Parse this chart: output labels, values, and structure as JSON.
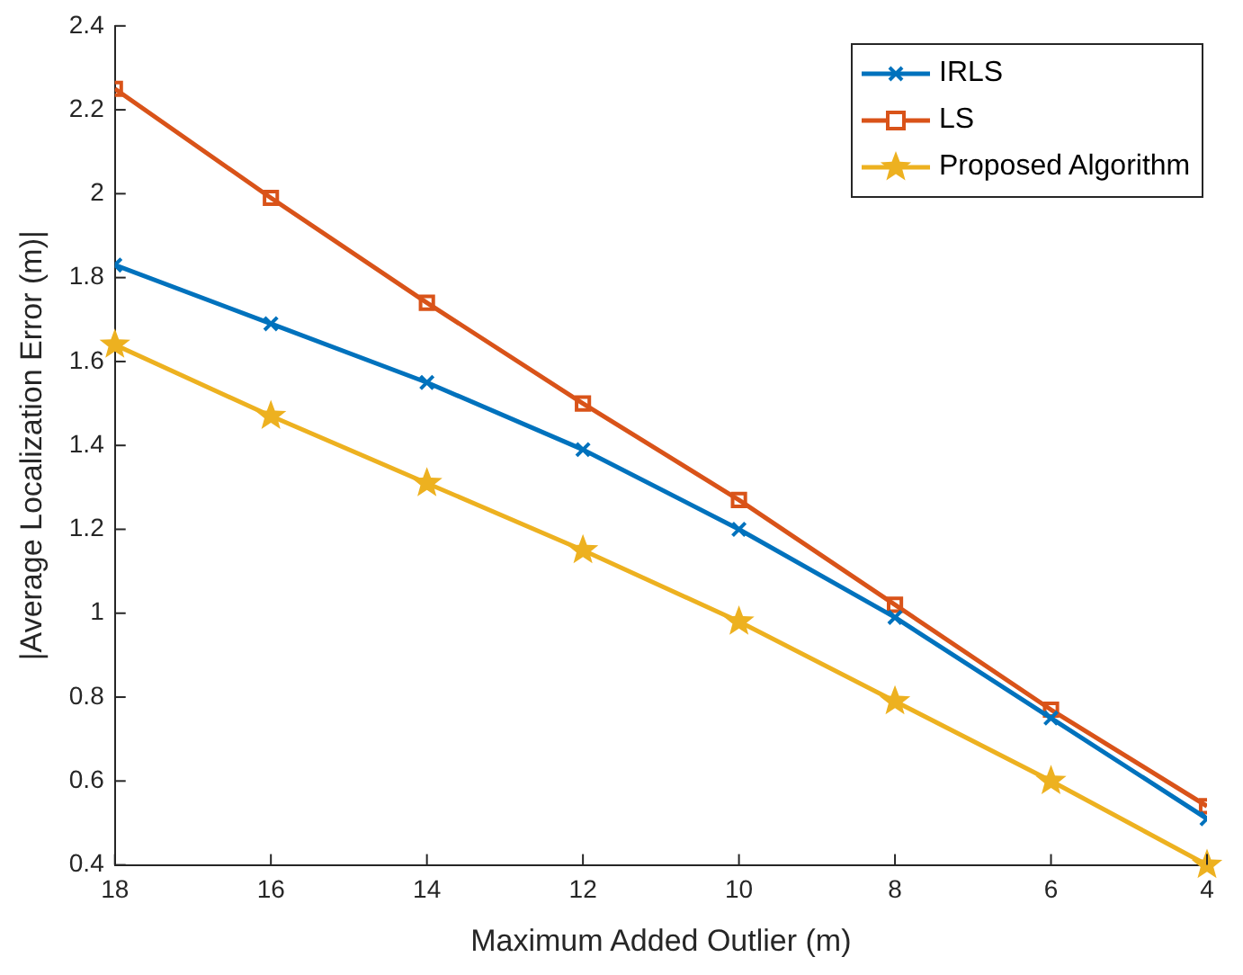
{
  "chart_data": {
    "type": "line",
    "xlabel": "Maximum Added Outlier (m)",
    "ylabel": "|Average Localization Error (m)|",
    "x": [
      18,
      16,
      14,
      12,
      10,
      8,
      6,
      4
    ],
    "series": [
      {
        "name": "IRLS",
        "color": "#0072bd",
        "marker": "cross",
        "values": [
          1.83,
          1.69,
          1.55,
          1.39,
          1.2,
          0.99,
          0.75,
          0.51
        ]
      },
      {
        "name": "LS",
        "color": "#d95319",
        "marker": "square",
        "values": [
          2.25,
          1.99,
          1.74,
          1.5,
          1.27,
          1.02,
          0.77,
          0.54
        ]
      },
      {
        "name": "Proposed Algorithm",
        "color": "#edb120",
        "marker": "star",
        "values": [
          1.64,
          1.47,
          1.31,
          1.15,
          0.98,
          0.79,
          0.6,
          0.4
        ]
      }
    ],
    "xlim": [
      18,
      4
    ],
    "xticks": [
      18,
      16,
      14,
      12,
      10,
      8,
      6,
      4
    ],
    "ylim": [
      0.4,
      2.4
    ],
    "yticks": [
      0.4,
      0.6,
      0.8,
      1,
      1.2,
      1.4,
      1.6,
      1.8,
      2,
      2.2,
      2.4
    ],
    "grid": false,
    "legend": "top right",
    "line_style": "solid"
  }
}
